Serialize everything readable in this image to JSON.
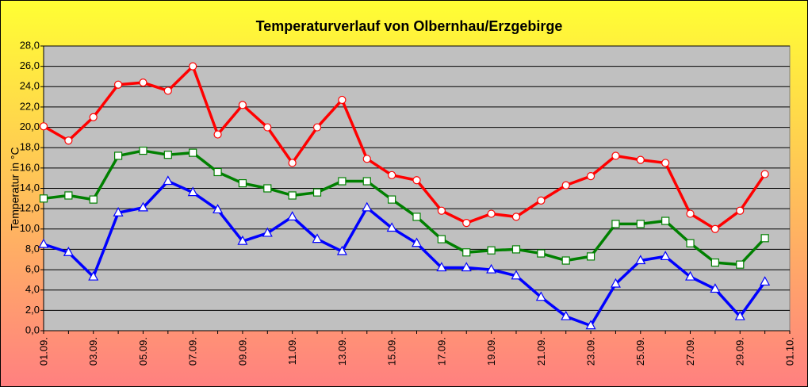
{
  "chart_data": {
    "type": "line",
    "title": "Temperaturverlauf von Olbernhau/Erzgebirge",
    "y_label": "Temperatur in °C",
    "categories": [
      "01.09.",
      null,
      "03.09.",
      null,
      "05.09.",
      null,
      "07.09.",
      null,
      "09.09.",
      null,
      "11.09.",
      null,
      "13.09.",
      null,
      "15.09.",
      null,
      "17.09.",
      null,
      "19.09.",
      null,
      "21.09.",
      null,
      "23.09.",
      null,
      "25.09.",
      null,
      "27.09.",
      null,
      "29.09.",
      null,
      "01.10."
    ],
    "series": [
      {
        "color": "#ff0000",
        "marker": "circle",
        "values": [
          20.1,
          18.7,
          21.0,
          24.2,
          24.4,
          23.6,
          26.0,
          19.3,
          22.2,
          20.0,
          16.5,
          20.0,
          22.7,
          16.9,
          15.3,
          14.8,
          11.8,
          10.6,
          11.5,
          11.2,
          12.8,
          14.3,
          15.2,
          17.2,
          16.8,
          16.5,
          11.5,
          10.0,
          11.8,
          15.4,
          null
        ]
      },
      {
        "color": "#008000",
        "marker": "square",
        "values": [
          13.0,
          13.3,
          12.9,
          17.2,
          17.7,
          17.3,
          17.5,
          15.6,
          14.5,
          14.0,
          13.3,
          13.6,
          14.7,
          14.7,
          12.9,
          11.2,
          9.0,
          7.7,
          7.9,
          8.0,
          7.6,
          6.9,
          7.3,
          10.5,
          10.5,
          10.8,
          8.6,
          6.7,
          6.5,
          9.1,
          null
        ]
      },
      {
        "color": "#0000ff",
        "marker": "triangle",
        "values": [
          8.5,
          7.7,
          5.3,
          11.6,
          12.1,
          14.7,
          13.6,
          11.9,
          8.8,
          9.6,
          11.2,
          9.0,
          7.8,
          12.1,
          10.1,
          8.6,
          6.2,
          6.2,
          6.0,
          5.4,
          3.3,
          1.4,
          0.5,
          4.6,
          6.9,
          7.3,
          5.3,
          4.1,
          1.4,
          4.8,
          null
        ]
      }
    ],
    "ylim": [
      0,
      28
    ],
    "yticks": [
      {
        "value": 0,
        "label": "0,0"
      },
      {
        "value": 2,
        "label": "2,0"
      },
      {
        "value": 4,
        "label": "4,0"
      },
      {
        "value": 6,
        "label": "6,0"
      },
      {
        "value": 8,
        "label": "8,0"
      },
      {
        "value": 10,
        "label": "10,0"
      },
      {
        "value": 12,
        "label": "12,0"
      },
      {
        "value": 14,
        "label": "14,0"
      },
      {
        "value": 16,
        "label": "16,0"
      },
      {
        "value": 18,
        "label": "18,0"
      },
      {
        "value": 20,
        "label": "20,0"
      },
      {
        "value": 22,
        "label": "22,0"
      },
      {
        "value": 24,
        "label": "24,0"
      },
      {
        "value": 26,
        "label": "26,0"
      },
      {
        "value": 28,
        "label": "28,0"
      }
    ],
    "grid": true,
    "plot_background": "#c0c0c0"
  }
}
